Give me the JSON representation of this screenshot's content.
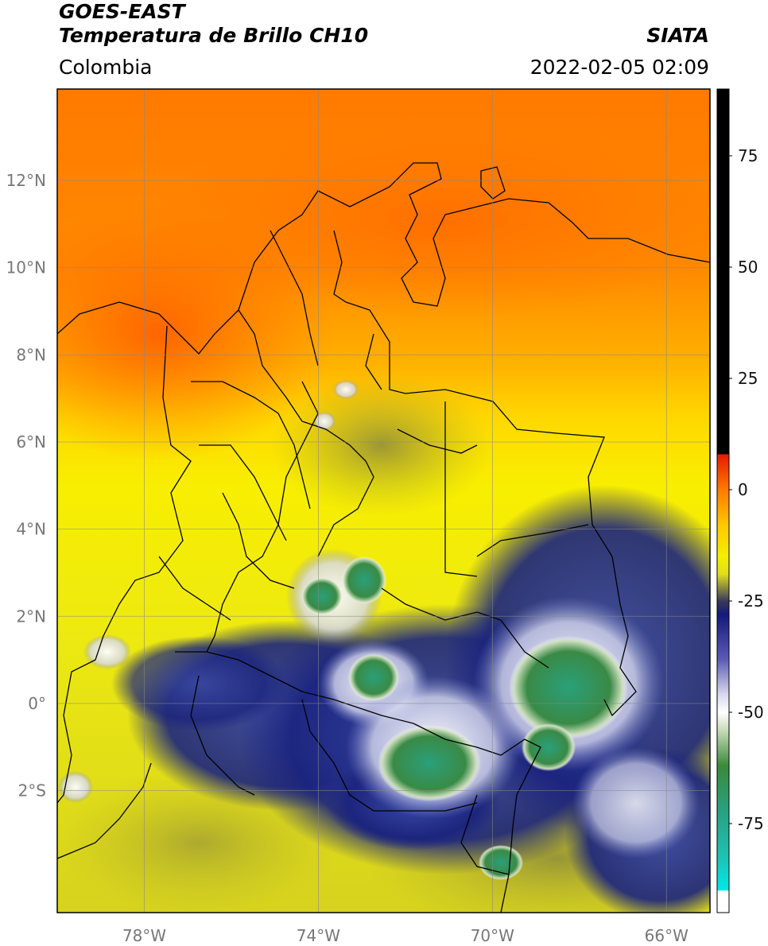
{
  "header": {
    "satellite": "GOES-EAST",
    "product": "Temperatura de Brillo CH10",
    "region": "Colombia",
    "agency": "SIATA",
    "datetime": "2022-02-05 02:09"
  },
  "map": {
    "lon_range": [
      -80,
      -65
    ],
    "lat_range": [
      -4.8,
      14.1
    ],
    "lon_ticks": [
      {
        "value": -78,
        "label": "78°W"
      },
      {
        "value": -74,
        "label": "74°W"
      },
      {
        "value": -70,
        "label": "70°W"
      },
      {
        "value": -66,
        "label": "66°W"
      }
    ],
    "lat_ticks": [
      {
        "value": 12,
        "label": "12°N"
      },
      {
        "value": 10,
        "label": "10°N"
      },
      {
        "value": 8,
        "label": "8°N"
      },
      {
        "value": 6,
        "label": "6°N"
      },
      {
        "value": 4,
        "label": "4°N"
      },
      {
        "value": 2,
        "label": "2°N"
      },
      {
        "value": 0,
        "label": "0°"
      },
      {
        "value": -2,
        "label": "2°S"
      }
    ],
    "grid": true,
    "colors": {
      "warm": "#ff7a00",
      "mid": "#f5e600",
      "cold": "#1a237e",
      "very_cold": "#3a9a4a"
    }
  },
  "colorbar": {
    "range": [
      -95,
      90
    ],
    "ticks": [
      {
        "value": 75,
        "label": "75"
      },
      {
        "value": 50,
        "label": "50"
      },
      {
        "value": 25,
        "label": "25"
      },
      {
        "value": 0,
        "label": "0"
      },
      {
        "value": -25,
        "label": "-25"
      },
      {
        "value": -50,
        "label": "-50"
      },
      {
        "value": -75,
        "label": "-75"
      }
    ],
    "stops": [
      {
        "value": 90,
        "color": "#000000"
      },
      {
        "value": 8,
        "color": "#000000"
      },
      {
        "value": 7.9,
        "color": "#e61a00"
      },
      {
        "value": 0,
        "color": "#ff7a00"
      },
      {
        "value": -8,
        "color": "#ffc800"
      },
      {
        "value": -15,
        "color": "#f5ee00"
      },
      {
        "value": -19,
        "color": "#e0dc1e"
      },
      {
        "value": -22,
        "color": "#8a8a40"
      },
      {
        "value": -25,
        "color": "#3a3a5a"
      },
      {
        "value": -28,
        "color": "#141a78"
      },
      {
        "value": -38,
        "color": "#5a5ab4"
      },
      {
        "value": -46,
        "color": "#d8d8ee"
      },
      {
        "value": -50,
        "color": "#ffffff"
      },
      {
        "value": -54,
        "color": "#c8dcb8"
      },
      {
        "value": -62,
        "color": "#3a8a3a"
      },
      {
        "value": -72,
        "color": "#2aa080"
      },
      {
        "value": -82,
        "color": "#20c0b0"
      },
      {
        "value": -90,
        "color": "#00e8e8"
      },
      {
        "value": -90.1,
        "color": "#ffffff"
      },
      {
        "value": -95,
        "color": "#ffffff"
      }
    ]
  }
}
